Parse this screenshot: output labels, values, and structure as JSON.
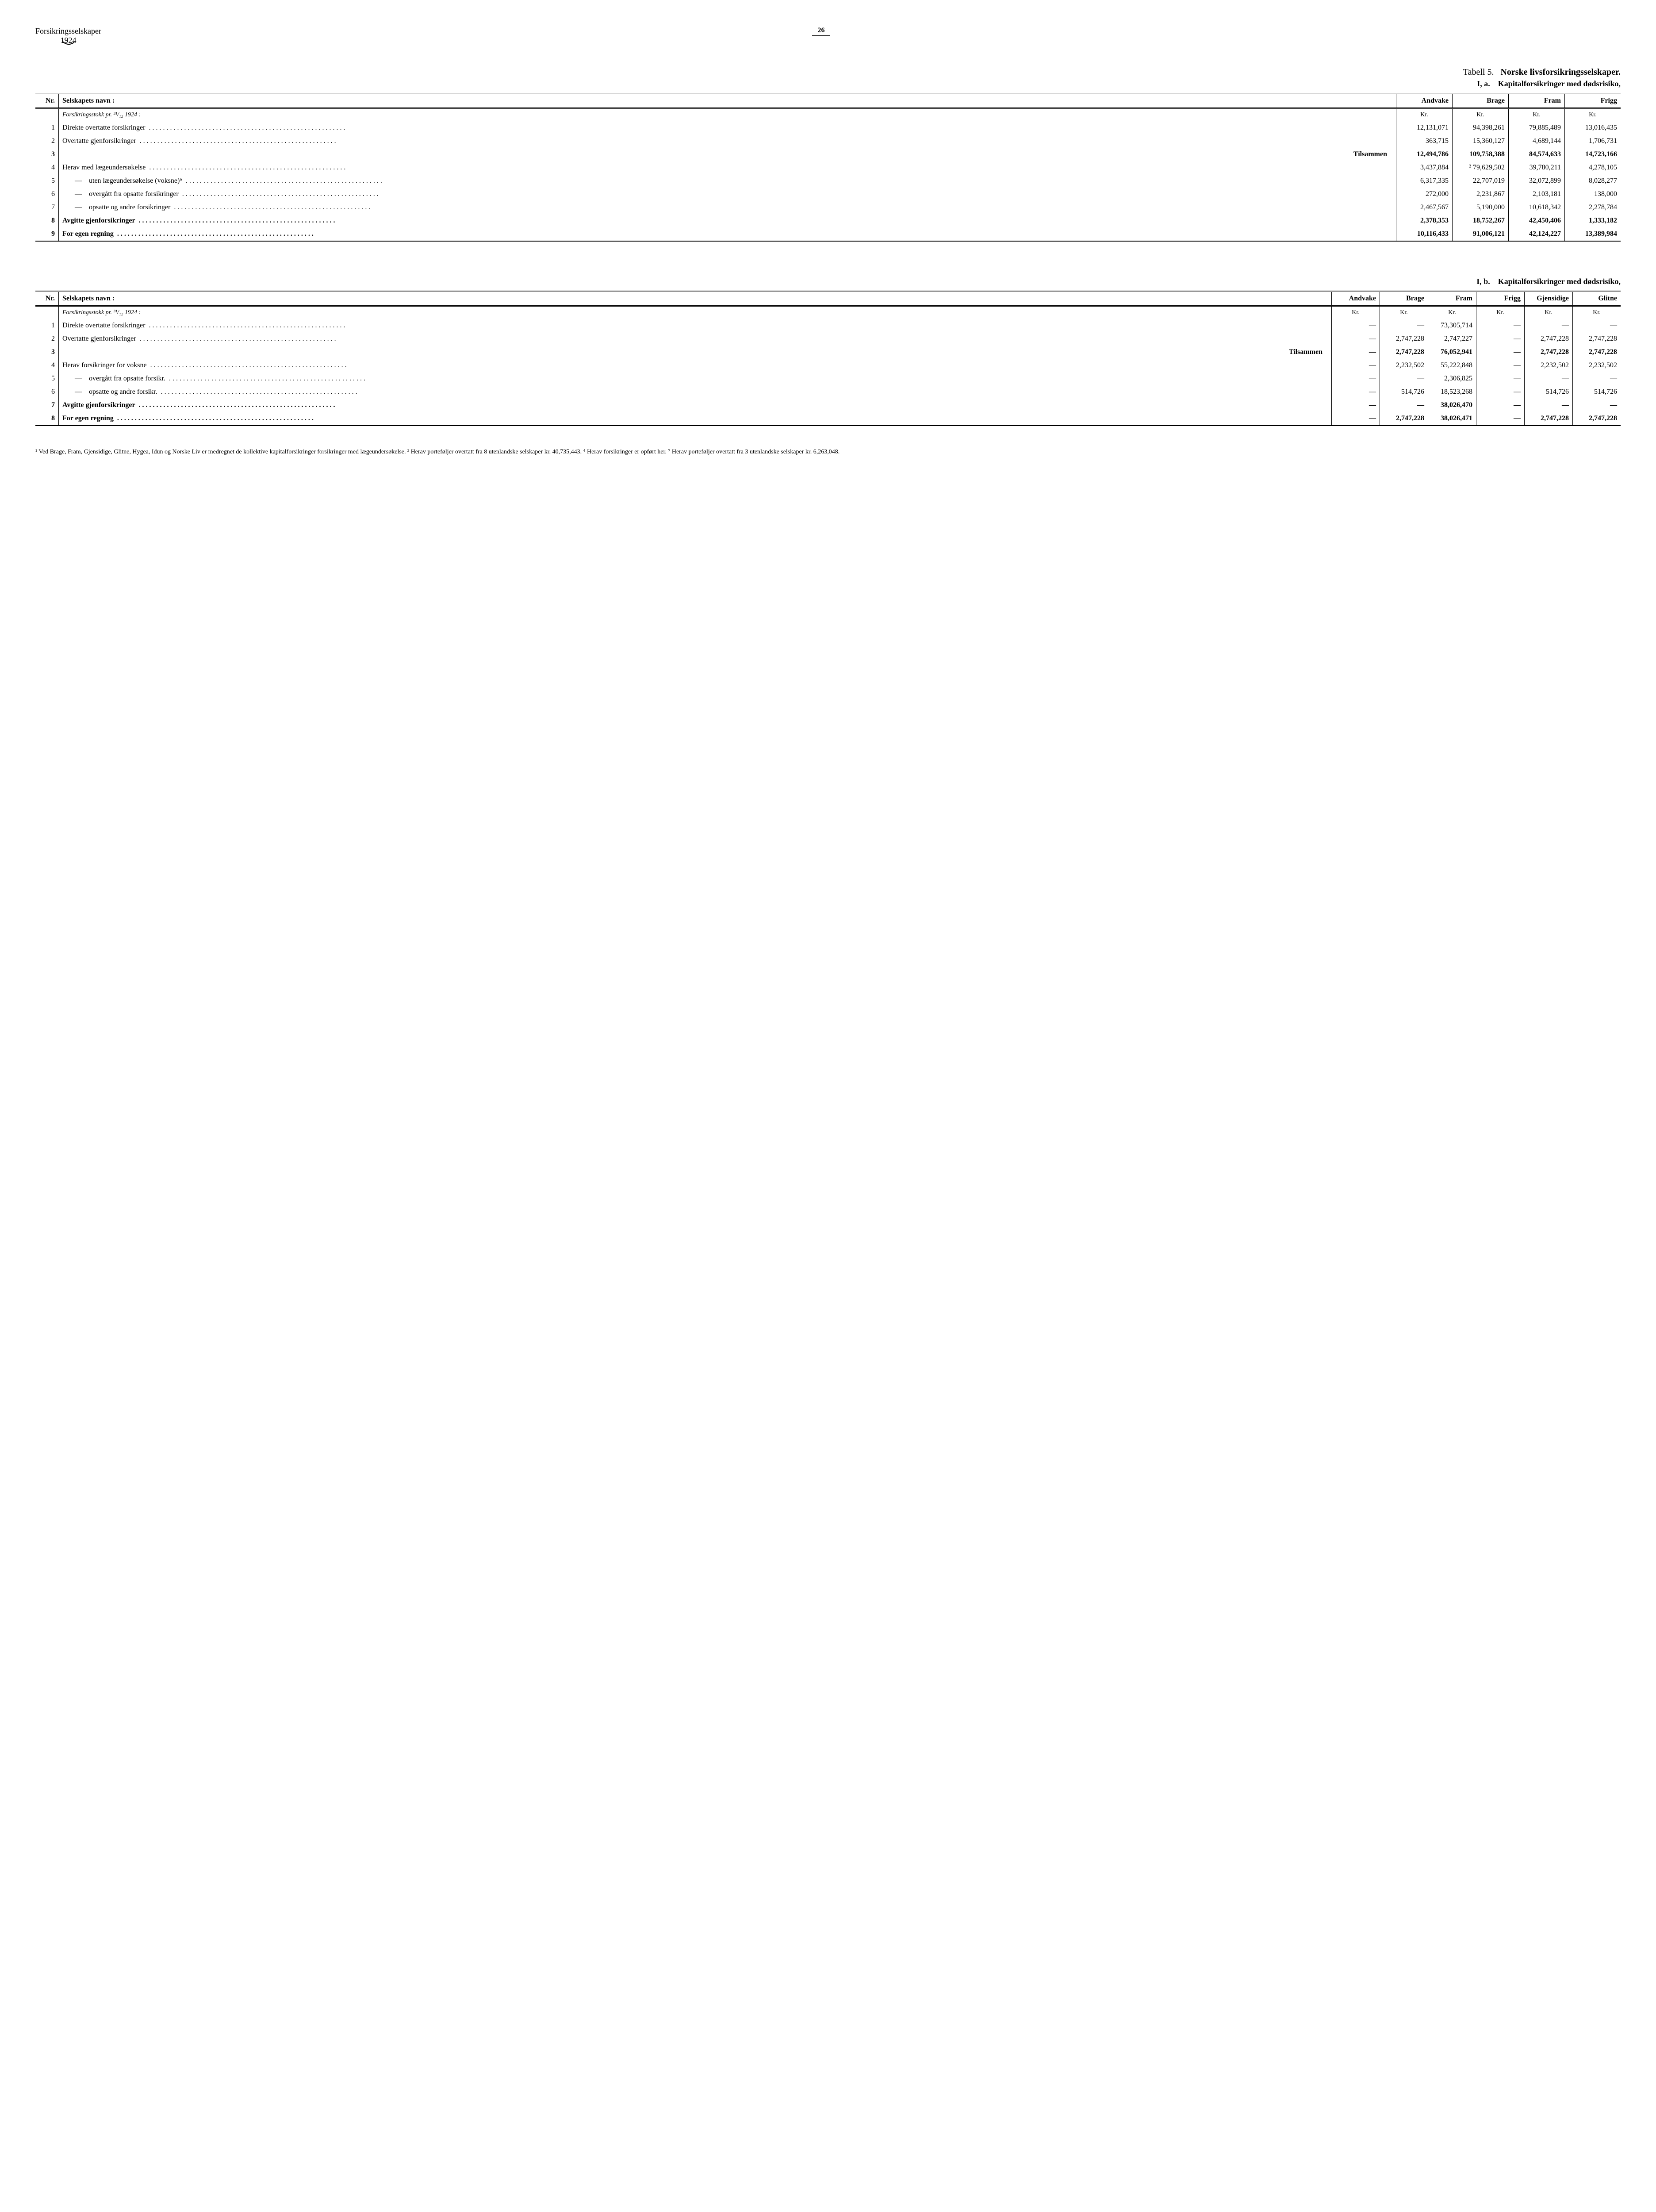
{
  "header": {
    "left_line1": "Forsikringsselskaper",
    "left_line2": "1924",
    "page_number": "26"
  },
  "tableA": {
    "title_label": "Tabell 5.",
    "title_main": "Norske livsforsikringsselskaper.",
    "subtitle": "I, a. Kapitalforsikringer med dødsrisiko,",
    "columns": [
      "Nr.",
      "Selskapets navn :",
      "Andvake",
      "Brage",
      "Fram",
      "Frigg"
    ],
    "currency": "Kr.",
    "section_heading": "Forsikringsstokk pr. ³¹/₁₂ 1924 :",
    "rows": [
      {
        "n": "1",
        "label": "Direkte overtatte forsikringer",
        "vals": [
          "12,131,071",
          "94,398,261",
          "79,885,489",
          "13,016,435"
        ],
        "bold": false
      },
      {
        "n": "2",
        "label": "Overtatte gjenforsikringer",
        "vals": [
          "363,715",
          "15,360,127",
          "4,689,144",
          "1,706,731"
        ],
        "bold": false
      },
      {
        "n": "3",
        "label": "Tilsammen",
        "vals": [
          "12,494,786",
          "109,758,388",
          "84,574,633",
          "14,723,166"
        ],
        "bold": true,
        "right": true
      },
      {
        "n": "4",
        "label": "Herav med lægeundersøkelse",
        "vals": [
          "3,437,884",
          "² 79,629,502",
          "39,780,211",
          "4,278,105"
        ],
        "bold": false
      },
      {
        "n": "5",
        "label": "— uten lægeundersøkelse (voksne)⁶",
        "vals": [
          "6,317,335",
          "22,707,019",
          "32,072,899",
          "8,028,277"
        ],
        "bold": false,
        "indent": true
      },
      {
        "n": "6",
        "label": "— overgått fra opsatte forsikringer",
        "vals": [
          "272,000",
          "2,231,867",
          "2,103,181",
          "138,000"
        ],
        "bold": false,
        "indent": true
      },
      {
        "n": "7",
        "label": "— opsatte og andre forsikringer",
        "vals": [
          "2,467,567",
          "5,190,000",
          "10,618,342",
          "2,278,784"
        ],
        "bold": false,
        "indent": true
      },
      {
        "n": "8",
        "label": "Avgitte gjenforsikringer",
        "vals": [
          "2,378,353",
          "18,752,267",
          "42,450,406",
          "1,333,182"
        ],
        "bold": true
      },
      {
        "n": "9",
        "label": "For egen regning",
        "vals": [
          "10,116,433",
          "91,006,121",
          "42,124,227",
          "13,389,984"
        ],
        "bold": true,
        "last": true
      }
    ]
  },
  "tableB": {
    "subtitle": "I, b. Kapitalforsikringer med dødsrisiko,",
    "columns": [
      "Nr.",
      "Selskapets navn :",
      "Andvake",
      "Brage",
      "Fram",
      "Frigg",
      "Gjensidige",
      "Glitne"
    ],
    "currency": "Kr.",
    "section_heading": "Forsikringsstokk pr. ³¹/₁₂ 1924 :",
    "rows": [
      {
        "n": "1",
        "label": "Direkte overtatte forsikringer",
        "vals": [
          "—",
          "—",
          "73,305,714",
          "—",
          "—",
          "—"
        ],
        "bold": false
      },
      {
        "n": "2",
        "label": "Overtatte gjenforsikringer",
        "vals": [
          "—",
          "2,747,228",
          "2,747,227",
          "—",
          "2,747,228",
          "2,747,228"
        ],
        "bold": false
      },
      {
        "n": "3",
        "label": "Tilsammen",
        "vals": [
          "—",
          "2,747,228",
          "76,052,941",
          "—",
          "2,747,228",
          "2,747,228"
        ],
        "bold": true,
        "right": true
      },
      {
        "n": "4",
        "label": "Herav forsikringer for voksne",
        "vals": [
          "—",
          "2,232,502",
          "55,222,848",
          "—",
          "2,232,502",
          "2,232,502"
        ],
        "bold": false
      },
      {
        "n": "5",
        "label": "— overgått fra opsatte forsikr.",
        "vals": [
          "—",
          "—",
          "2,306,825",
          "—",
          "—",
          "—"
        ],
        "bold": false,
        "indent": true
      },
      {
        "n": "6",
        "label": "— opsatte og andre forsikr.",
        "vals": [
          "—",
          "514,726",
          "18,523,268",
          "—",
          "514,726",
          "514,726"
        ],
        "bold": false,
        "indent": true
      },
      {
        "n": "7",
        "label": "Avgitte gjenforsikringer",
        "vals": [
          "—",
          "—",
          "38,026,470",
          "—",
          "—",
          "—"
        ],
        "bold": true
      },
      {
        "n": "8",
        "label": "For egen regning",
        "vals": [
          "—",
          "2,747,228",
          "38,026,471",
          "—",
          "2,747,228",
          "2,747,228"
        ],
        "bold": true,
        "last": true
      }
    ]
  },
  "footnotes": "¹ Ved Brage, Fram, Gjensidige, Glitne, Hygea, Idun og Norske Liv er medregnet de kollektive kapitalforsikringer forsikringer med lægeundersøkelse. ³ Herav porteføljer overtatt fra 8 utenlandske selskaper kr. 40,735,443. ⁴ Herav forsikringer er opført her. ⁷ Herav porteføljer overtatt fra 3 utenlandske selskaper kr. 6,263,048."
}
